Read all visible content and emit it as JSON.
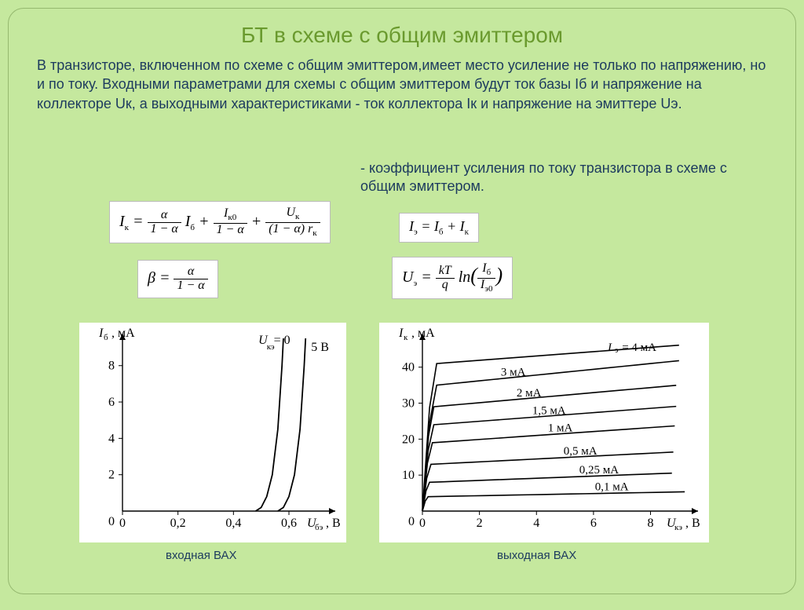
{
  "title": "БТ в схеме с общим эмиттером",
  "body_text": "В транзисторе, включенном по схеме с общим эмиттером,имеет место усиление не только по напряжению, но и по току. Входными параметрами для схемы с общим эмиттером будут ток базы Iб и напряжение на коллекторе Uк, а выходными характеристиками - ток коллектора Iк и напряжение на эмиттере Uэ.",
  "coef_note": "- коэффициент усиления по току транзистора в схеме с общим эмиттером.",
  "formulas": {
    "f1_html": "I<sub>к</sub> = <span class='frac'><span class='num'>α</span><span class='den'>1 − α</span></span> I<sub>б</sub> + <span class='frac'><span class='num'>I<sub>к0</sub></span><span class='den'>1 − α</span></span> + <span class='frac'><span class='num'>U<sub>к</sub></span><span class='den'>(1 − α) r<sub>к</sub></span></span>",
    "f2_html": "β = <span class='frac'><span class='num'>α</span><span class='den'>1 − α</span></span>",
    "f3_html": "I<sub>э</sub> = I<sub>б</sub> + I<sub>к</sub>",
    "f4_html": "U<sub>э</sub> = <span class='frac'><span class='num'>kT</span><span class='den'>q</span></span> ln<span style='font-size:26px'>(</span><span class='frac'><span class='num'>I<sub>б</sub></span><span class='den'>I<sub>э0</sub></span></span><span style='font-size:26px'>)</span>"
  },
  "chart_left": {
    "type": "line",
    "title": "входная ВАХ",
    "x_label": "Uбэ, В",
    "y_label": "Iб, мА",
    "x_ticks": [
      0,
      0.2,
      0.4,
      0.6
    ],
    "y_ticks": [
      0,
      2,
      4,
      6,
      8
    ],
    "xlim": [
      0,
      0.75
    ],
    "ylim": [
      0,
      9.5
    ],
    "background_color": "#ffffff",
    "line_color": "#000000",
    "line_width": 1.8,
    "font_size": 16,
    "curves": [
      {
        "label": "Uкэ = 0",
        "points": [
          [
            0.48,
            0
          ],
          [
            0.5,
            0.2
          ],
          [
            0.52,
            0.8
          ],
          [
            0.54,
            2.0
          ],
          [
            0.56,
            4.5
          ],
          [
            0.575,
            8.0
          ],
          [
            0.58,
            9.5
          ]
        ]
      },
      {
        "label": "5 В",
        "points": [
          [
            0.56,
            0
          ],
          [
            0.58,
            0.2
          ],
          [
            0.6,
            0.8
          ],
          [
            0.62,
            2.0
          ],
          [
            0.64,
            4.5
          ],
          [
            0.655,
            8.0
          ],
          [
            0.66,
            9.5
          ]
        ]
      }
    ]
  },
  "chart_right": {
    "type": "line",
    "title": "выходная ВАХ",
    "x_label": "Uкэ, В",
    "y_label": "Iк, мА",
    "x_ticks": [
      0,
      2,
      4,
      6,
      8
    ],
    "y_ticks": [
      0,
      10,
      20,
      30,
      40
    ],
    "xlim": [
      0,
      9.5
    ],
    "ylim": [
      0,
      48
    ],
    "background_color": "#ffffff",
    "line_color": "#000000",
    "line_width": 1.6,
    "font_size": 16,
    "curves": [
      {
        "label": "Iэ = 4 мА",
        "knee": 0.5,
        "y0": 41,
        "slope": 0.6
      },
      {
        "label": "3 мА",
        "knee": 0.5,
        "y0": 35,
        "slope": 0.8
      },
      {
        "label": "2 мА",
        "knee": 0.4,
        "y0": 29,
        "slope": 0.7
      },
      {
        "label": "1,5 мА",
        "knee": 0.4,
        "y0": 24,
        "slope": 0.6
      },
      {
        "label": "1 мА",
        "knee": 0.35,
        "y0": 19,
        "slope": 0.55
      },
      {
        "label": "0,5 мА",
        "knee": 0.3,
        "y0": 13,
        "slope": 0.4
      },
      {
        "label": "0,25 мА",
        "knee": 0.25,
        "y0": 8,
        "slope": 0.3
      },
      {
        "label": "0,1 мА",
        "knee": 0.2,
        "y0": 4,
        "slope": 0.15
      }
    ]
  },
  "captions": {
    "left": "входная ВАХ",
    "right": "выходная ВАХ"
  }
}
